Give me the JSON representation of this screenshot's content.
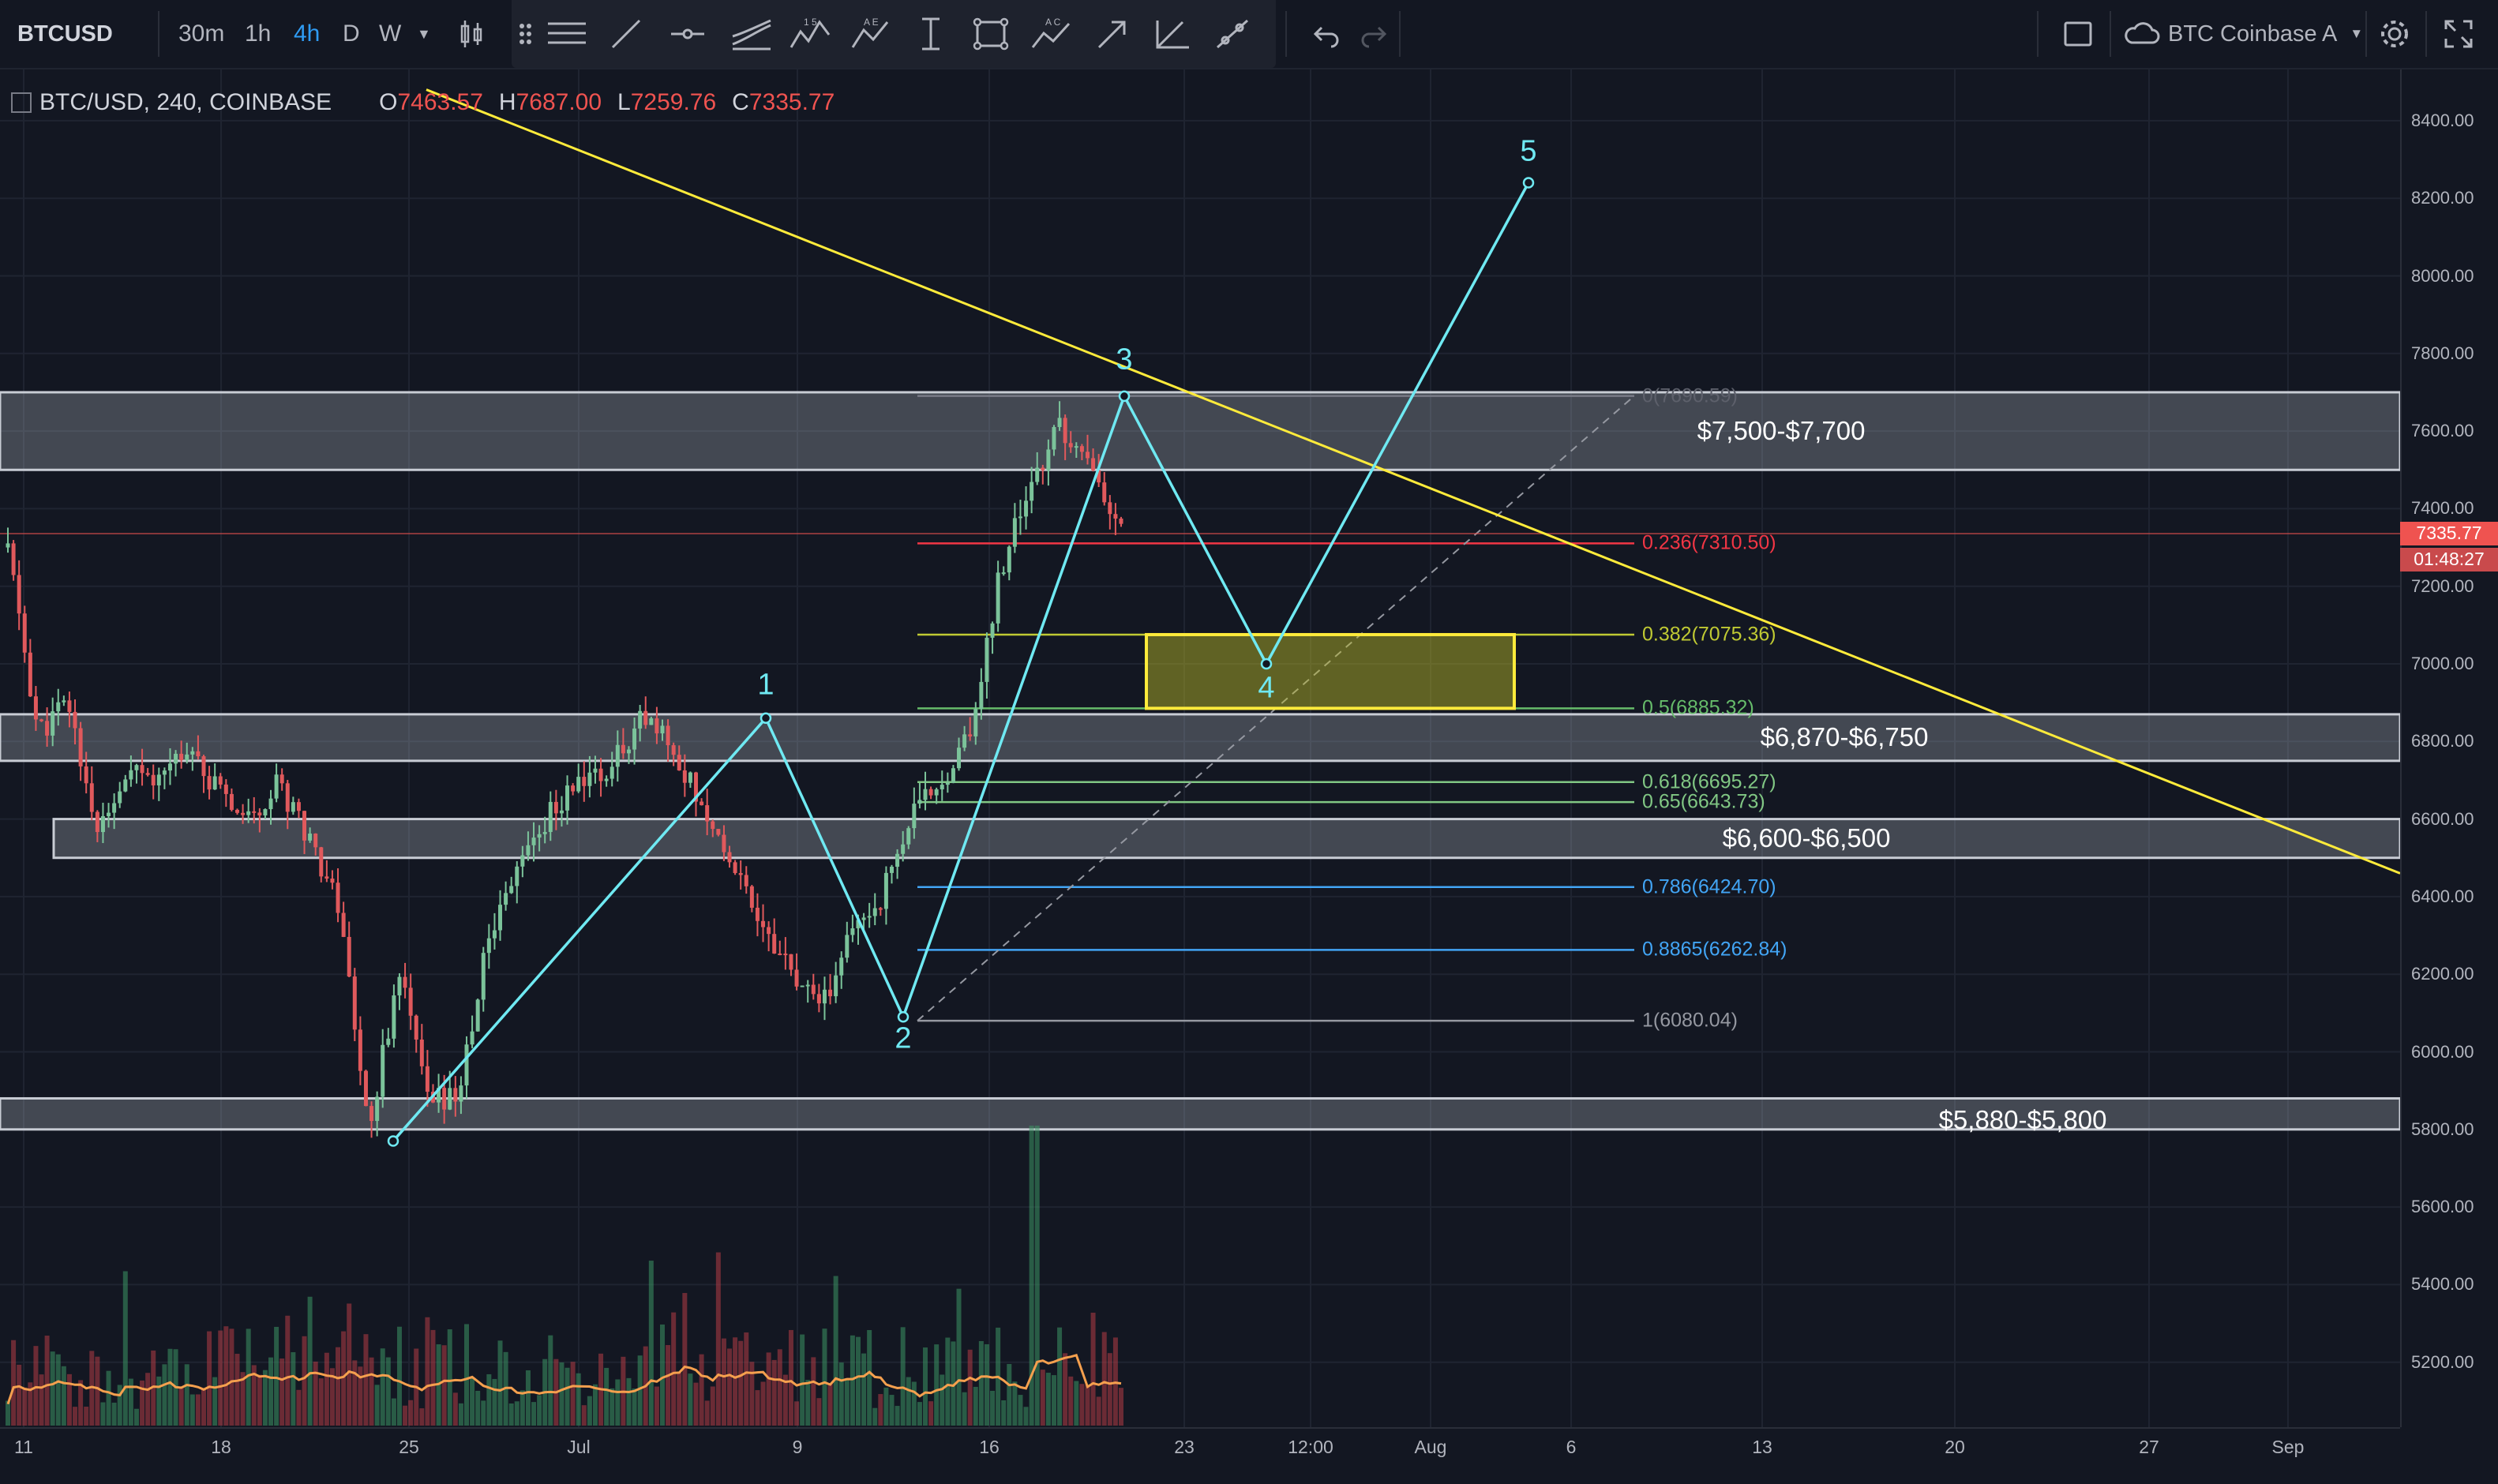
{
  "toolbar": {
    "symbol": "BTCUSD",
    "intervals": [
      {
        "label": "30m",
        "active": false
      },
      {
        "label": "1h",
        "active": false
      },
      {
        "label": "4h",
        "active": true
      },
      {
        "label": "D",
        "active": false
      },
      {
        "label": "W",
        "active": false
      }
    ],
    "drawing_tool_icons": [
      "trend-line-icon",
      "horizontal-line-icon",
      "pitchfork-icon",
      "xabcd-pattern-icon",
      "abcd-pattern-icon",
      "cursor-text-icon",
      "rectangle-icon",
      "elliott-wave-icon",
      "arrow-icon",
      "angle-icon",
      "brush-icon"
    ],
    "pattern_labels": [
      "1 5",
      "A E",
      "A C"
    ],
    "undo_icon": "undo-icon",
    "redo_icon": "redo-icon",
    "layout_name": "BTC Coinbase A",
    "settings_icon": "gear-icon",
    "fullscreen_icon": "fullscreen-icon"
  },
  "legend": {
    "title": "BTC/USD, 240, COINBASE",
    "open_label": "O",
    "open": "7463.57",
    "high_label": "H",
    "high": "7687.00",
    "low_label": "L",
    "low": "7259.76",
    "close_label": "C",
    "close": "7335.77"
  },
  "price_badges": {
    "last_price": "7335.77",
    "countdown": "01:48:27"
  },
  "zones": [
    {
      "label": "$7,500-$7,700",
      "top": 7700,
      "bottom": 7500
    },
    {
      "label": "$6,870-$6,750",
      "top": 6870,
      "bottom": 6750
    },
    {
      "label": "$6,600-$6,500",
      "top": 6600,
      "bottom": 6500
    },
    {
      "label": "$5,880-$5,800",
      "top": 5880,
      "bottom": 5800
    }
  ],
  "fib_levels": [
    {
      "label": "0(7690.59)",
      "price": 7690.59,
      "color": "#787b86"
    },
    {
      "label": "0.236(7310.50)",
      "price": 7310.5,
      "color": "#f23645"
    },
    {
      "label": "0.382(7075.36)",
      "price": 7075.36,
      "color": "#c0ca33"
    },
    {
      "label": "0.5(6885.32)",
      "price": 6885.32,
      "color": "#66bb6a"
    },
    {
      "label": "0.618(6695.27)",
      "price": 6695.27,
      "color": "#81c784"
    },
    {
      "label": "0.65(6643.73)",
      "price": 6643.73,
      "color": "#81c784"
    },
    {
      "label": "0.786(6424.70)",
      "price": 6424.7,
      "color": "#42a5f5"
    },
    {
      "label": "0.8865(6262.84)",
      "price": 6262.84,
      "color": "#42a5f5"
    },
    {
      "label": "1(6080.04)",
      "price": 6080.04,
      "color": "#9598a1"
    }
  ],
  "waves": [
    {
      "label": "1",
      "price": 6860
    },
    {
      "label": "2",
      "price": 6090
    },
    {
      "label": "3",
      "price": 7690
    },
    {
      "label": "4",
      "price": 7000
    },
    {
      "label": "5",
      "price": 8240
    }
  ],
  "chart_data": {
    "type": "candlestick",
    "title": "BTC/USD, 240, COINBASE",
    "ylim": [
      5000,
      8500
    ],
    "y_ticks": [
      "8400.00",
      "8200.00",
      "8000.00",
      "7800.00",
      "7600.00",
      "7400.00",
      "7200.00",
      "7000.00",
      "6800.00",
      "6600.00",
      "6400.00",
      "6200.00",
      "6000.00",
      "5800.00",
      "5600.00",
      "5400.00",
      "5200.00"
    ],
    "x_ticks": [
      "11",
      "18",
      "25",
      "Jul",
      "9",
      "16",
      "23",
      "12:00",
      "Aug",
      "6",
      "13",
      "20",
      "27",
      "Sep"
    ],
    "last_price": 7335.77,
    "trendline": {
      "color": "#ffeb3b",
      "from_price": 8480,
      "to_price": 6460
    },
    "target_box": {
      "top": 7075.36,
      "bottom": 6885.32,
      "color": "#ffeb3b"
    },
    "price_path": [
      7300,
      6820,
      6900,
      6560,
      6700,
      6720,
      6800,
      6660,
      6610,
      6690,
      6560,
      6380,
      5800,
      6210,
      5860,
      5900,
      6300,
      6500,
      6610,
      6700,
      6720,
      6860,
      6800,
      6650,
      6500,
      6350,
      6200,
      6100,
      6300,
      6400,
      6600,
      6700,
      6820,
      7250,
      7450,
      7620,
      7500,
      7340
    ]
  }
}
